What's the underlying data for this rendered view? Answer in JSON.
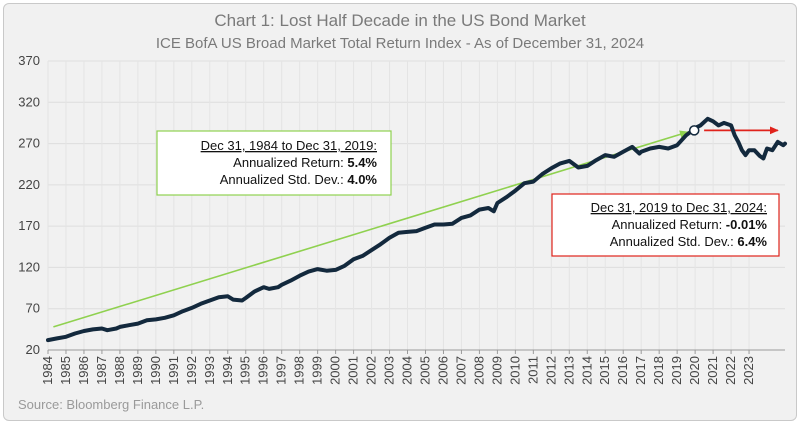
{
  "chart_data": {
    "type": "line",
    "title": "Chart 1: Lost Half Decade in the US Bond Market",
    "subtitle": "ICE BofA US Broad Market Total Return Index - As of December 31, 2024",
    "source": "Source: Bloomberg Finance L.P.",
    "xlabel": "",
    "ylabel": "",
    "ylim": [
      20,
      370
    ],
    "xlim": [
      1984,
      2025
    ],
    "yticks": [
      "20",
      "70",
      "120",
      "170",
      "220",
      "270",
      "320",
      "370"
    ],
    "xticks": [
      "1984",
      "1985",
      "1986",
      "1987",
      "1988",
      "1989",
      "1990",
      "1991",
      "1992",
      "1993",
      "1994",
      "1995",
      "1996",
      "1997",
      "1998",
      "1999",
      "2000",
      "2001",
      "2002",
      "2003",
      "2004",
      "2005",
      "2006",
      "2007",
      "2008",
      "2009",
      "2010",
      "2011",
      "2012",
      "2013",
      "2014",
      "2015",
      "2016",
      "2017",
      "2018",
      "2019",
      "2020",
      "2021",
      "2022",
      "2023"
    ],
    "grid": true,
    "series": [
      {
        "name": "ICE BofA US Broad Market Total Return Index",
        "color": "#13293d",
        "points": [
          [
            1984.0,
            32
          ],
          [
            1984.5,
            34
          ],
          [
            1985.0,
            36
          ],
          [
            1985.5,
            40
          ],
          [
            1986.0,
            43
          ],
          [
            1986.5,
            45
          ],
          [
            1987.0,
            46
          ],
          [
            1987.3,
            44
          ],
          [
            1987.8,
            46
          ],
          [
            1988.0,
            48
          ],
          [
            1988.5,
            50
          ],
          [
            1989.0,
            52
          ],
          [
            1989.5,
            56
          ],
          [
            1990.0,
            57
          ],
          [
            1990.5,
            59
          ],
          [
            1991.0,
            62
          ],
          [
            1991.5,
            67
          ],
          [
            1992.0,
            71
          ],
          [
            1992.5,
            76
          ],
          [
            1993.0,
            80
          ],
          [
            1993.5,
            84
          ],
          [
            1994.0,
            85
          ],
          [
            1994.3,
            81
          ],
          [
            1994.8,
            80
          ],
          [
            1995.0,
            83
          ],
          [
            1995.5,
            91
          ],
          [
            1996.0,
            96
          ],
          [
            1996.3,
            94
          ],
          [
            1996.8,
            96
          ],
          [
            1997.0,
            99
          ],
          [
            1997.5,
            104
          ],
          [
            1998.0,
            110
          ],
          [
            1998.5,
            115
          ],
          [
            1999.0,
            118
          ],
          [
            1999.5,
            116
          ],
          [
            2000.0,
            117
          ],
          [
            2000.5,
            122
          ],
          [
            2001.0,
            130
          ],
          [
            2001.5,
            134
          ],
          [
            2002.0,
            141
          ],
          [
            2002.5,
            148
          ],
          [
            2003.0,
            156
          ],
          [
            2003.5,
            162
          ],
          [
            2004.0,
            163
          ],
          [
            2004.5,
            164
          ],
          [
            2005.0,
            168
          ],
          [
            2005.5,
            172
          ],
          [
            2006.0,
            172
          ],
          [
            2006.5,
            173
          ],
          [
            2007.0,
            180
          ],
          [
            2007.5,
            183
          ],
          [
            2008.0,
            190
          ],
          [
            2008.5,
            192
          ],
          [
            2008.8,
            188
          ],
          [
            2009.0,
            198
          ],
          [
            2009.5,
            205
          ],
          [
            2010.0,
            213
          ],
          [
            2010.5,
            222
          ],
          [
            2011.0,
            224
          ],
          [
            2011.5,
            233
          ],
          [
            2012.0,
            240
          ],
          [
            2012.5,
            246
          ],
          [
            2013.0,
            249
          ],
          [
            2013.5,
            241
          ],
          [
            2014.0,
            243
          ],
          [
            2014.5,
            250
          ],
          [
            2015.0,
            256
          ],
          [
            2015.5,
            254
          ],
          [
            2016.0,
            260
          ],
          [
            2016.5,
            266
          ],
          [
            2016.9,
            258
          ],
          [
            2017.0,
            260
          ],
          [
            2017.5,
            264
          ],
          [
            2018.0,
            266
          ],
          [
            2018.5,
            264
          ],
          [
            2019.0,
            268
          ],
          [
            2019.5,
            280
          ],
          [
            2019.8,
            285
          ],
          [
            2020.0,
            289
          ],
          [
            2020.3,
            292
          ],
          [
            2020.7,
            300
          ],
          [
            2021.0,
            297
          ],
          [
            2021.3,
            292
          ],
          [
            2021.6,
            295
          ],
          [
            2022.0,
            292
          ],
          [
            2022.2,
            280
          ],
          [
            2022.4,
            272
          ],
          [
            2022.6,
            262
          ],
          [
            2022.8,
            256
          ],
          [
            2023.0,
            262
          ],
          [
            2023.3,
            262
          ],
          [
            2023.6,
            255
          ],
          [
            2023.8,
            252
          ],
          [
            2024.0,
            264
          ],
          [
            2024.3,
            262
          ],
          [
            2024.6,
            272
          ],
          [
            2024.9,
            268
          ],
          [
            2025.0,
            270
          ]
        ]
      }
    ],
    "start_marker": [
      2019.95,
      286
    ],
    "annotations": [
      {
        "color": "#8fd14f",
        "arrow_from": [
          1984.3,
          48
        ],
        "arrow_to": [
          2019.6,
          284
        ],
        "lines": [
          {
            "label": "Dec 31, 1984 to Dec 31, 2019:",
            "value": ""
          },
          {
            "label": "Annualized Return: ",
            "value": "5.4%"
          },
          {
            "label": "Annualized Std. Dev.: ",
            "value": "4.0%"
          }
        ]
      },
      {
        "color": "#e0231c",
        "arrow_from": [
          2020.5,
          286
        ],
        "arrow_to": [
          2024.6,
          286
        ],
        "lines": [
          {
            "label": "Dec 31, 2019 to Dec 31, 2024:",
            "value": ""
          },
          {
            "label": "Annualized Return: ",
            "value": "-0.01%"
          },
          {
            "label": "Annualized Std. Dev.: ",
            "value": "6.4%"
          }
        ]
      }
    ]
  }
}
